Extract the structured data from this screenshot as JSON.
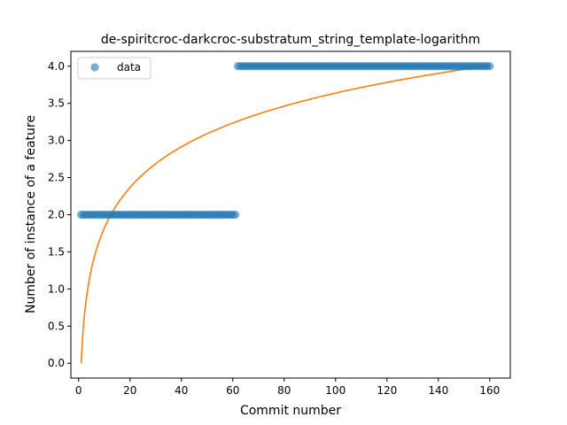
{
  "chart_data": {
    "type": "scatter",
    "title": "de-spiritcroc-darkcroc-substratum_string_template-logarithm",
    "xlabel": "Commit number",
    "ylabel": "Number of instance of a feature",
    "xlim": [
      -3,
      168
    ],
    "ylim": [
      -0.2,
      4.2
    ],
    "xticks": [
      0,
      20,
      40,
      60,
      80,
      100,
      120,
      140,
      160
    ],
    "yticks": [
      0.0,
      0.5,
      1.0,
      1.5,
      2.0,
      2.5,
      3.0,
      3.5,
      4.0
    ],
    "ytick_labels": [
      "0.0",
      "0.5",
      "1.0",
      "1.5",
      "2.0",
      "2.5",
      "3.0",
      "3.5",
      "4.0"
    ],
    "legend": {
      "placement": "top-left",
      "entries": [
        {
          "label": "data",
          "color": "#1f77b4"
        }
      ]
    },
    "series": [
      {
        "name": "data",
        "kind": "scatter",
        "color": "#1f77b4",
        "segments": [
          {
            "x_start": 1,
            "x_end": 61,
            "y": 2
          },
          {
            "x_start": 62,
            "x_end": 160,
            "y": 4
          }
        ]
      },
      {
        "kind": "line",
        "color": "#ff7f0e",
        "model": "y = a*ln(x) + b",
        "a": 0.79,
        "b": 0.0,
        "x_range": [
          1,
          160
        ]
      }
    ]
  }
}
